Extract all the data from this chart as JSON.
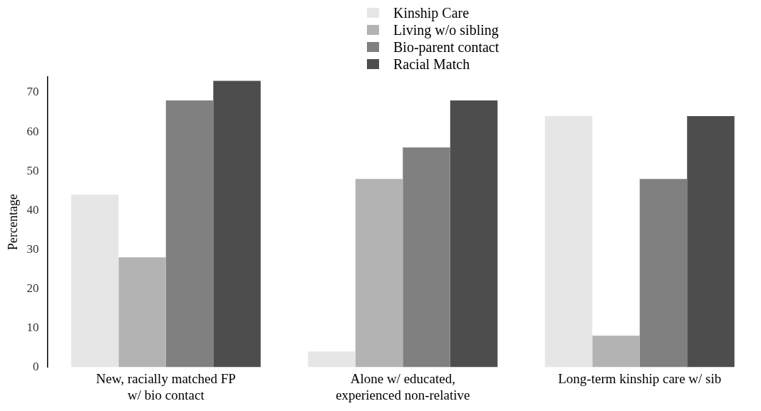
{
  "chart_data": {
    "type": "bar",
    "ylabel": "Percentage",
    "categories": [
      "New, racially matched FP\nw/ bio contact",
      "Alone w/ educated,\nexperienced non-relative",
      "Long-term kinship care w/ sib"
    ],
    "series": [
      {
        "name": "Kinship Care",
        "color": "#e6e6e6",
        "values": [
          44,
          4,
          64
        ]
      },
      {
        "name": "Living w/o sibling",
        "color": "#b3b3b3",
        "values": [
          28,
          48,
          8
        ]
      },
      {
        "name": "Bio-parent contact",
        "color": "#808080",
        "values": [
          68,
          56,
          48
        ]
      },
      {
        "name": "Racial Match",
        "color": "#4d4d4d",
        "values": [
          73,
          68,
          64
        ]
      }
    ],
    "ylim": [
      0,
      74
    ],
    "yticks": [
      0,
      10,
      20,
      30,
      40,
      50,
      60,
      70
    ],
    "grid": false,
    "legend": "top"
  }
}
